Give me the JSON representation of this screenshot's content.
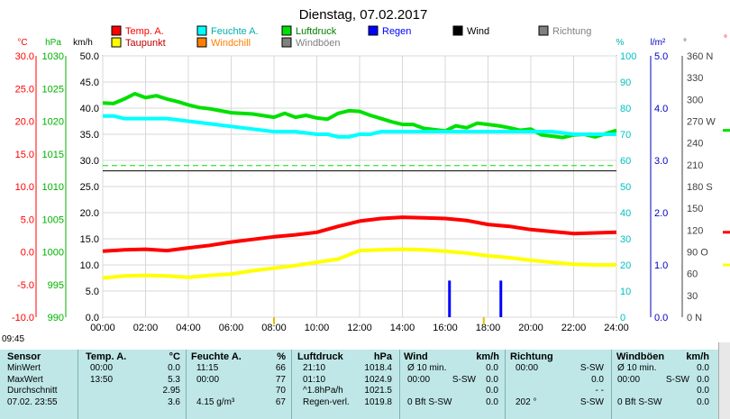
{
  "chart_data": {
    "type": "line",
    "title": "Dienstag, 07.02.2017",
    "legend": [
      {
        "label": "Temp. A.",
        "color": "#ff0000"
      },
      {
        "label": "Feuchte A.",
        "color": "#00ffff"
      },
      {
        "label": "Luftdruck",
        "color": "#00e000"
      },
      {
        "label": "Regen",
        "color": "#0000ff"
      },
      {
        "label": "Wind",
        "color": "#000000"
      },
      {
        "label": "Richtung",
        "color": "#808080"
      },
      {
        "label": "Taupunkt",
        "color": "#ffff00"
      },
      {
        "label": "Windchill",
        "color": "#ff8000"
      },
      {
        "label": "Windböen",
        "color": "#808080"
      }
    ],
    "axis_headers": {
      "temp": "°C",
      "pressure": "hPa",
      "wind": "km/h",
      "humidity": "%",
      "rain": "l/m²",
      "direction": "°"
    },
    "axes": {
      "temp": {
        "ticks": [
          "30.0",
          "25.0",
          "20.0",
          "15.0",
          "10.0",
          "5.0",
          "0.0",
          "-5.0",
          "-10.0"
        ],
        "range": [
          -10,
          30
        ],
        "color": "#ff0000"
      },
      "pressure": {
        "ticks": [
          "1030",
          "1025",
          "1020",
          "1015",
          "1010",
          "1005",
          "1000",
          "995",
          "990"
        ],
        "range": [
          990,
          1030
        ],
        "color": "#00b000"
      },
      "wind": {
        "ticks": [
          "50.0",
          "45.0",
          "40.0",
          "35.0",
          "30.0",
          "25.0",
          "20.0",
          "15.0",
          "10.0",
          "5.0",
          "0.0"
        ],
        "range": [
          0,
          50
        ],
        "color": "#000000"
      },
      "humidity": {
        "ticks": [
          "100",
          "90",
          "80",
          "70",
          "60",
          "50",
          "40",
          "30",
          "20",
          "10",
          "0"
        ],
        "range": [
          0,
          100
        ],
        "color": "#00c0c0"
      },
      "rain": {
        "ticks": [
          "5.0",
          "4.0",
          "3.0",
          "2.0",
          "1.0",
          "0.0"
        ],
        "range": [
          0,
          5
        ],
        "color": "#0000c0"
      },
      "direction": {
        "ticks": [
          "360 N",
          "330",
          "300",
          "270 W",
          "240",
          "210",
          "180 S",
          "150",
          "120",
          "90 O",
          "60",
          "30",
          "0 N"
        ],
        "range": [
          0,
          360
        ],
        "color": "#404040"
      },
      "x": {
        "ticks": [
          "00:00",
          "02:00",
          "04:00",
          "06:00",
          "08:00",
          "10:00",
          "12:00",
          "14:00",
          "16:00",
          "18:00",
          "20:00",
          "22:00",
          "24:00"
        ],
        "range": [
          0,
          24
        ]
      }
    },
    "series": [
      {
        "name": "Luftdruck",
        "axis": "pressure",
        "color": "#00e000",
        "x": [
          0,
          0.5,
          1,
          1.5,
          2,
          2.5,
          3,
          3.5,
          4,
          4.5,
          5,
          5.5,
          6,
          7,
          8,
          8.5,
          9,
          9.5,
          10,
          10.5,
          11,
          11.5,
          12,
          12.5,
          13,
          13.5,
          14,
          14.5,
          15,
          15.5,
          16,
          16.5,
          17,
          17.5,
          18,
          18.5,
          19,
          19.5,
          20,
          20.5,
          21,
          21.5,
          22,
          22.5,
          23,
          23.5,
          24
        ],
        "y": [
          1022.8,
          1022.7,
          1023.4,
          1024.2,
          1023.6,
          1023.9,
          1023.4,
          1023.0,
          1022.5,
          1022.1,
          1021.9,
          1021.6,
          1021.3,
          1021.1,
          1020.6,
          1021.2,
          1020.6,
          1020.9,
          1020.5,
          1020.3,
          1021.2,
          1021.6,
          1021.5,
          1020.9,
          1020.4,
          1019.9,
          1019.5,
          1019.5,
          1018.9,
          1018.7,
          1018.5,
          1019.3,
          1019.0,
          1019.7,
          1019.5,
          1019.3,
          1019.0,
          1018.6,
          1018.8,
          1017.9,
          1017.7,
          1017.5,
          1017.9,
          1018.0,
          1017.6,
          1018.1,
          1018.6
        ]
      },
      {
        "name": "Feuchte A.",
        "axis": "humidity",
        "color": "#00ffff",
        "x": [
          0,
          0.5,
          1,
          1.5,
          2,
          3,
          4,
          5,
          6,
          7,
          8,
          9,
          10,
          10.5,
          11,
          11.5,
          12,
          12.5,
          13,
          14,
          15,
          16,
          17,
          18,
          19,
          20,
          21,
          22,
          23,
          24
        ],
        "y": [
          77,
          77,
          76,
          76,
          76,
          76,
          75,
          74,
          73,
          72,
          71,
          71,
          70,
          70,
          69,
          69,
          70,
          70,
          71,
          71,
          71,
          71,
          71,
          71,
          71,
          71,
          71,
          70,
          70,
          70
        ]
      },
      {
        "name": "Temp. A.",
        "axis": "temp",
        "color": "#ff0000",
        "x": [
          0,
          1,
          2,
          3,
          4,
          5,
          6,
          7,
          8,
          9,
          10,
          11,
          12,
          13,
          14,
          15,
          16,
          17,
          18,
          19,
          20,
          21,
          22,
          23,
          24
        ],
        "y": [
          0.1,
          0.3,
          0.4,
          0.2,
          0.6,
          1.0,
          1.5,
          1.9,
          2.3,
          2.6,
          3.0,
          3.9,
          4.7,
          5.1,
          5.3,
          5.2,
          5.1,
          4.8,
          4.2,
          3.9,
          3.4,
          3.1,
          2.8,
          2.9,
          3.0
        ]
      },
      {
        "name": "Taupunkt",
        "axis": "temp",
        "color": "#ffff00",
        "x": [
          0,
          1,
          2,
          3,
          4,
          5,
          6,
          7,
          8,
          9,
          10,
          11,
          12,
          13,
          14,
          15,
          16,
          17,
          18,
          19,
          20,
          21,
          22,
          23,
          24
        ],
        "y": [
          -4.0,
          -3.7,
          -3.6,
          -3.7,
          -3.9,
          -3.6,
          -3.4,
          -2.9,
          -2.5,
          -2.1,
          -1.6,
          -1.1,
          0.2,
          0.3,
          0.4,
          0.3,
          0.1,
          -0.2,
          -0.6,
          -0.9,
          -1.3,
          -1.6,
          -1.9,
          -2.0,
          -2.0
        ]
      },
      {
        "name": "Regen",
        "axis": "rain",
        "color": "#0000ff",
        "type": "bar",
        "x": [
          16.2,
          18.6
        ],
        "y": [
          0.7,
          0.7
        ]
      }
    ],
    "reference_lines": [
      {
        "axis": "wind",
        "value": 29,
        "color": "#00e000",
        "style": "dashed"
      }
    ],
    "markers_x": [
      8.0,
      17.8
    ],
    "right_margin": {
      "line_colors": [
        "#00e000",
        "#ff0000",
        "#ffff00"
      ],
      "right_axis_char": "°"
    }
  },
  "current_time": "09:45",
  "summary": {
    "headers": [
      "Sensor",
      "Temp. A.",
      "°C",
      "Feuchte A.",
      "%",
      "Luftdruck",
      "hPa",
      "Wind",
      "km/h",
      "Richtung",
      "Windböen",
      "km/h"
    ],
    "rows": [
      {
        "label": "MinWert",
        "temp_time": "00:00",
        "temp": "0.0",
        "hum_time": "11:15",
        "hum": "66",
        "press_time": "21:10",
        "press": "1018.4",
        "wind_info": "Ø 10 min.",
        "wind": "0.0",
        "dir_time": "00:00",
        "dir": "S-SW",
        "gust_info": "Ø 10 min.",
        "gust": "0.0"
      },
      {
        "label": "MaxWert",
        "temp_time": "13:50",
        "temp": "5.3",
        "hum_time": "00:00",
        "hum": "77",
        "press_time": "01:10",
        "press": "1024.9",
        "wind_info": "00:00",
        "wind_dir": "S-SW",
        "wind": "0.0",
        "dir_time": "",
        "dir": "0.0",
        "gust_info": "00:00",
        "gust_dir": "S-SW",
        "gust": "0.0"
      },
      {
        "label": "Durchschnitt",
        "temp_time": "",
        "temp": "2.95",
        "hum_time": "",
        "hum": "70",
        "press_time": "^1.8hPa/h",
        "press": "1021.5",
        "wind_info": "",
        "wind": "0.0",
        "dir_time": "",
        "dir": "- -",
        "gust_info": "",
        "gust": "0.0"
      },
      {
        "label": "07.02. 23:55",
        "temp_time": "",
        "temp": "3.6",
        "hum_time": "4.15 g/m³",
        "hum": "67",
        "press_time": "Regen-verl.",
        "press": "1019.8",
        "wind_info": "0 Bft S-SW",
        "wind": "0.0",
        "dir_time": "202 °",
        "dir": "S-SW",
        "gust_info": "0 Bft S-SW",
        "gust": "0.0"
      }
    ]
  }
}
